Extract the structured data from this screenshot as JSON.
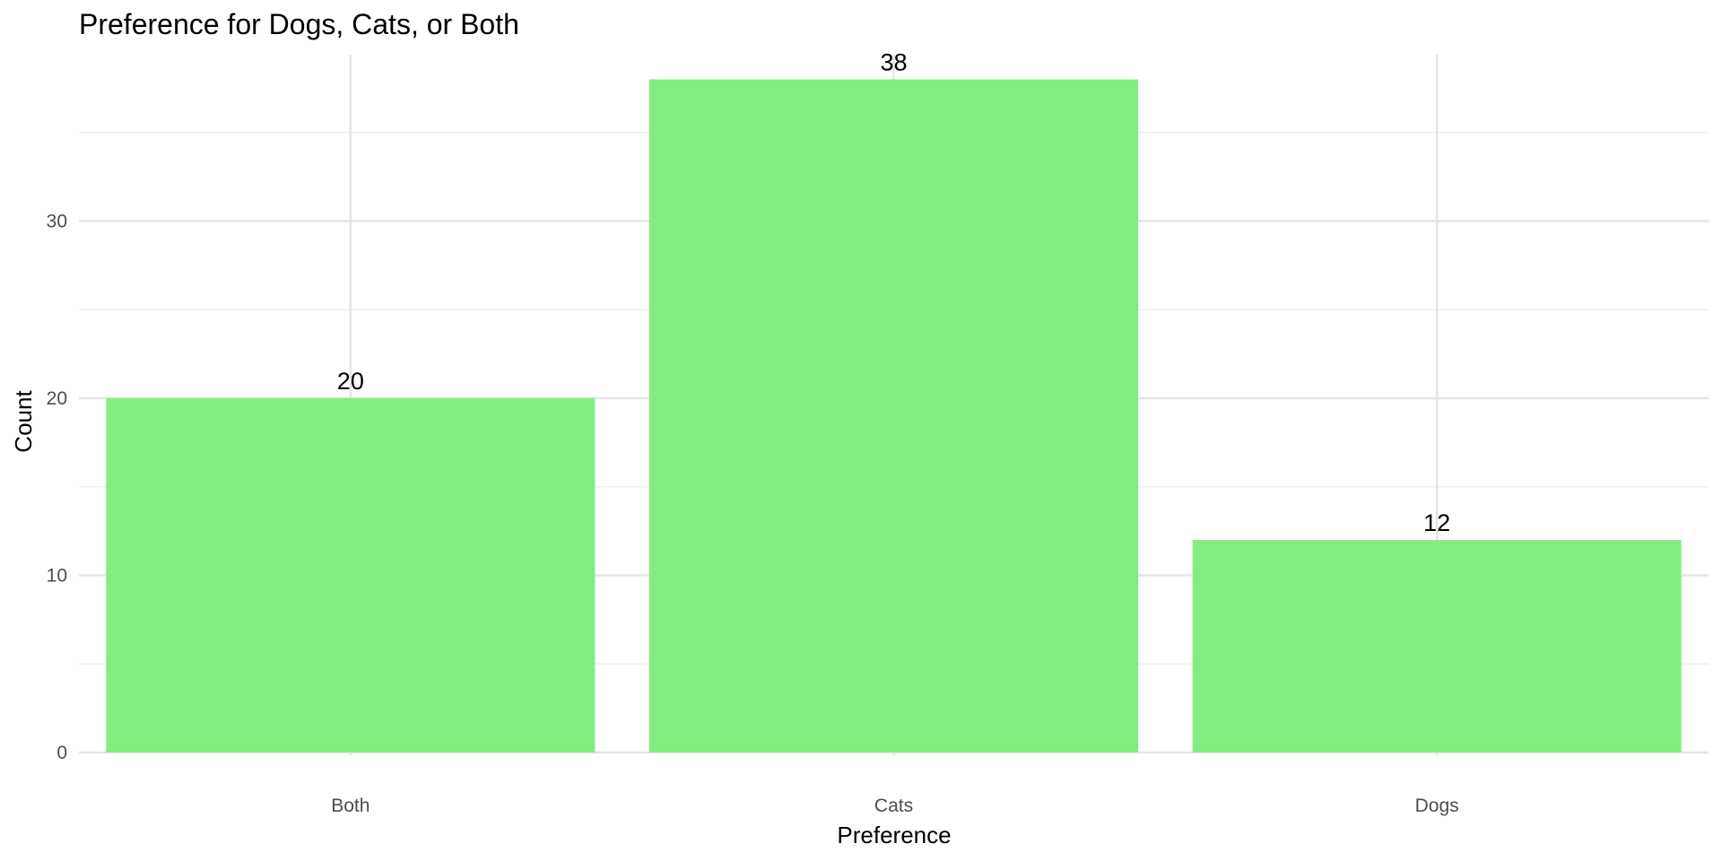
{
  "chart_data": {
    "type": "bar",
    "title": "Preference for Dogs, Cats, or Both",
    "xlabel": "Preference",
    "ylabel": "Count",
    "categories": [
      "Both",
      "Cats",
      "Dogs"
    ],
    "values": [
      20,
      38,
      12
    ],
    "data_labels": [
      "20",
      "38",
      "12"
    ],
    "ylim": [
      0,
      40
    ],
    "yticks": [
      0,
      10,
      20,
      30
    ],
    "ytick_labels": [
      "0",
      "10",
      "20",
      "30"
    ],
    "grid": true,
    "legend": "none",
    "bar_color": "#83ee7f"
  }
}
